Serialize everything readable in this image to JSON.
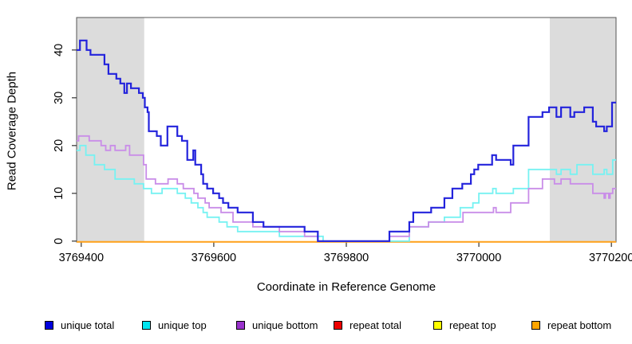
{
  "chart_data": {
    "type": "line",
    "subtype": "step",
    "title": "",
    "xlabel": "Coordinate in Reference Genome",
    "ylabel": "Read Coverage Depth",
    "xlim": [
      3769393,
      3770207
    ],
    "ylim": [
      0,
      47
    ],
    "xticks": [
      3769400,
      3769600,
      3769800,
      3770000,
      3770200
    ],
    "xtick_labels": [
      "3769400",
      "3769600",
      "3769800",
      "3770000",
      "3770200"
    ],
    "yticks": [
      0,
      10,
      20,
      30,
      40
    ],
    "ytick_labels": [
      "0",
      "10",
      "20",
      "30",
      "40"
    ],
    "grid": false,
    "shade_color": "#DCDCDC",
    "shaded_regions": [
      {
        "from": 3769393,
        "to": 3769495
      },
      {
        "from": 3770107,
        "to": 3770207
      }
    ],
    "legend_position": "bottom",
    "legend": [
      {
        "label": "unique total",
        "color": "#0000DD"
      },
      {
        "label": "unique top",
        "color": "#00E6F0"
      },
      {
        "label": "unique bottom",
        "color": "#9932CC"
      },
      {
        "label": "repeat total",
        "color": "#EE0000"
      },
      {
        "label": "repeat top",
        "color": "#FFFF00"
      },
      {
        "label": "repeat bottom",
        "color": "#FFA500"
      }
    ],
    "series": [
      {
        "name": "repeat total",
        "line_color": "#DD0000",
        "width": 1.5,
        "flat_offset": 1,
        "points": [
          [
            3769393,
            0
          ]
        ]
      },
      {
        "name": "repeat top",
        "line_color": "#F0F000",
        "width": 1.5,
        "flat_offset": 1,
        "points": [
          [
            3769393,
            0
          ]
        ]
      },
      {
        "name": "repeat bottom",
        "line_color": "#FFA018",
        "width": 2,
        "flat_offset": 1,
        "points": [
          [
            3769393,
            0
          ]
        ]
      },
      {
        "name": "unique top",
        "line_color": "#76F2F2",
        "width": 1.8,
        "flat_offset": 0,
        "points": [
          [
            3769393,
            19
          ],
          [
            3769398,
            20
          ],
          [
            3769407,
            18
          ],
          [
            3769420,
            16
          ],
          [
            3769435,
            15
          ],
          [
            3769451,
            13
          ],
          [
            3769480,
            12
          ],
          [
            3769494,
            11
          ],
          [
            3769506,
            10
          ],
          [
            3769522,
            11
          ],
          [
            3769545,
            10
          ],
          [
            3769557,
            9
          ],
          [
            3769566,
            8
          ],
          [
            3769576,
            7
          ],
          [
            3769584,
            6
          ],
          [
            3769590,
            5
          ],
          [
            3769608,
            4
          ],
          [
            3769620,
            3
          ],
          [
            3769636,
            2
          ],
          [
            3769699,
            1
          ],
          [
            3769765,
            0
          ],
          [
            3769895,
            3
          ],
          [
            3769924,
            4
          ],
          [
            3769948,
            5
          ],
          [
            3769972,
            7
          ],
          [
            3769991,
            8
          ],
          [
            3770000,
            10
          ],
          [
            3770021,
            11
          ],
          [
            3770026,
            10
          ],
          [
            3770052,
            11
          ],
          [
            3770075,
            15
          ],
          [
            3770117,
            14
          ],
          [
            3770124,
            15
          ],
          [
            3770138,
            14
          ],
          [
            3770148,
            16
          ],
          [
            3770172,
            14
          ],
          [
            3770189,
            15
          ],
          [
            3770193,
            14
          ],
          [
            3770202,
            17
          ]
        ]
      },
      {
        "name": "unique bottom",
        "line_color": "#C98DE8",
        "width": 1.8,
        "flat_offset": 0,
        "points": [
          [
            3769393,
            21
          ],
          [
            3769396,
            22
          ],
          [
            3769412,
            21
          ],
          [
            3769430,
            20
          ],
          [
            3769437,
            19
          ],
          [
            3769444,
            20
          ],
          [
            3769451,
            19
          ],
          [
            3769467,
            20
          ],
          [
            3769473,
            18
          ],
          [
            3769494,
            16
          ],
          [
            3769498,
            13
          ],
          [
            3769512,
            12
          ],
          [
            3769531,
            13
          ],
          [
            3769545,
            12
          ],
          [
            3769554,
            11
          ],
          [
            3769570,
            10
          ],
          [
            3769576,
            9
          ],
          [
            3769587,
            8
          ],
          [
            3769593,
            7
          ],
          [
            3769611,
            6
          ],
          [
            3769629,
            4
          ],
          [
            3769659,
            3
          ],
          [
            3769699,
            2
          ],
          [
            3769737,
            1
          ],
          [
            3769757,
            0
          ],
          [
            3769865,
            1
          ],
          [
            3769895,
            3
          ],
          [
            3769924,
            4
          ],
          [
            3769976,
            6
          ],
          [
            3770022,
            7
          ],
          [
            3770026,
            6
          ],
          [
            3770048,
            8
          ],
          [
            3770075,
            11
          ],
          [
            3770096,
            13
          ],
          [
            3770114,
            12
          ],
          [
            3770124,
            13
          ],
          [
            3770138,
            12
          ],
          [
            3770172,
            10
          ],
          [
            3770189,
            9
          ],
          [
            3770191,
            10
          ],
          [
            3770196,
            9
          ],
          [
            3770198,
            10
          ],
          [
            3770202,
            11
          ]
        ]
      },
      {
        "name": "unique total",
        "line_color": "#2323DC",
        "width": 2.2,
        "flat_offset": 0,
        "points": [
          [
            3769393,
            40
          ],
          [
            3769398,
            42
          ],
          [
            3769408,
            40
          ],
          [
            3769414,
            39
          ],
          [
            3769435,
            37
          ],
          [
            3769441,
            35
          ],
          [
            3769453,
            34
          ],
          [
            3769459,
            33
          ],
          [
            3769465,
            31
          ],
          [
            3769469,
            33
          ],
          [
            3769475,
            32
          ],
          [
            3769487,
            31
          ],
          [
            3769493,
            30
          ],
          [
            3769496,
            28
          ],
          [
            3769500,
            27
          ],
          [
            3769502,
            23
          ],
          [
            3769514,
            22
          ],
          [
            3769520,
            20
          ],
          [
            3769530,
            24
          ],
          [
            3769545,
            22
          ],
          [
            3769552,
            21
          ],
          [
            3769560,
            17
          ],
          [
            3769569,
            19
          ],
          [
            3769572,
            16
          ],
          [
            3769581,
            14
          ],
          [
            3769584,
            12
          ],
          [
            3769590,
            11
          ],
          [
            3769599,
            10
          ],
          [
            3769608,
            9
          ],
          [
            3769614,
            8
          ],
          [
            3769622,
            7
          ],
          [
            3769636,
            6
          ],
          [
            3769659,
            4
          ],
          [
            3769675,
            3
          ],
          [
            3769737,
            2
          ],
          [
            3769757,
            0
          ],
          [
            3769865,
            2
          ],
          [
            3769895,
            4
          ],
          [
            3769901,
            6
          ],
          [
            3769928,
            7
          ],
          [
            3769948,
            9
          ],
          [
            3769960,
            11
          ],
          [
            3769975,
            12
          ],
          [
            3769988,
            14
          ],
          [
            3769993,
            15
          ],
          [
            3769999,
            16
          ],
          [
            3770020,
            18
          ],
          [
            3770026,
            17
          ],
          [
            3770048,
            16
          ],
          [
            3770052,
            20
          ],
          [
            3770075,
            26
          ],
          [
            3770096,
            27
          ],
          [
            3770106,
            28
          ],
          [
            3770117,
            26
          ],
          [
            3770124,
            28
          ],
          [
            3770138,
            26
          ],
          [
            3770144,
            27
          ],
          [
            3770159,
            28
          ],
          [
            3770172,
            25
          ],
          [
            3770177,
            24
          ],
          [
            3770189,
            23
          ],
          [
            3770193,
            24
          ],
          [
            3770201,
            29
          ]
        ]
      }
    ]
  }
}
